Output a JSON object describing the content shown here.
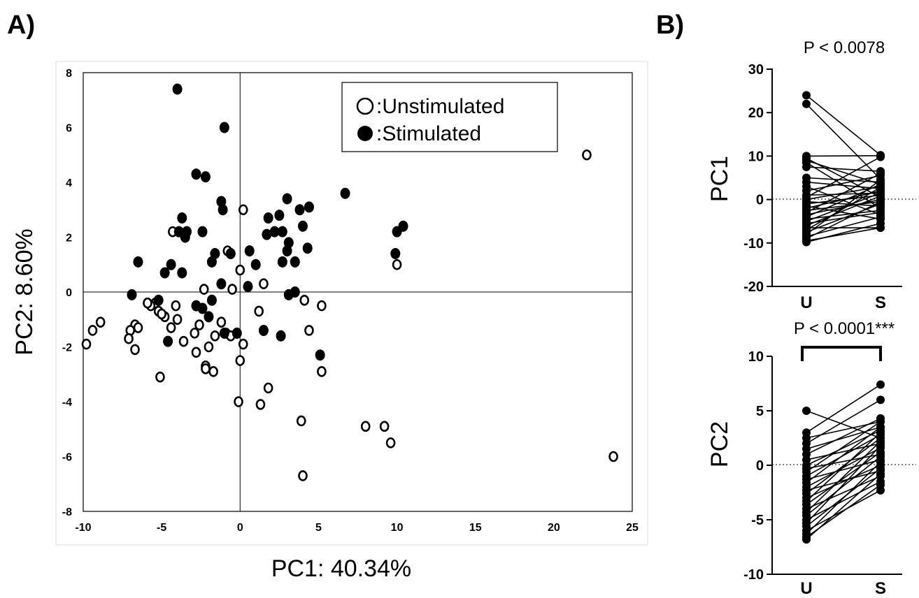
{
  "panels": {
    "a_label": "A)",
    "b_label": "B)"
  },
  "colors": {
    "ink": "#000000",
    "paper": "#ffffff",
    "frame": "#dddddd"
  },
  "chart_data": [
    {
      "id": "pca",
      "type": "scatter",
      "xlabel": "PC1: 40.34%",
      "ylabel": "PC2: 8.60%",
      "xlim": [
        -10,
        25
      ],
      "ylim": [
        -8,
        8
      ],
      "xticks": [
        "-10",
        "-5",
        "0",
        "5",
        "10",
        "15",
        "20",
        "25"
      ],
      "yticks": [
        "8",
        "6",
        "4",
        "2",
        "0",
        "-2",
        "-4",
        "-6",
        "-8"
      ],
      "legend": {
        "position": "top-right",
        "entries": [
          {
            "symbol": "○",
            "label": ":Unstimulated"
          },
          {
            "symbol": "●",
            "label": ":Stimulated"
          }
        ]
      },
      "series": [
        {
          "name": ":Unstimulated",
          "marker": "open-circle",
          "points": [
            [
              22.1,
              5.0
            ],
            [
              23.8,
              -6.0
            ],
            [
              10.0,
              1.0
            ],
            [
              0.2,
              3.0
            ],
            [
              -0.8,
              1.5
            ],
            [
              0.0,
              0.8
            ],
            [
              1.5,
              0.3
            ],
            [
              -0.5,
              0.1
            ],
            [
              -2.3,
              0.1
            ],
            [
              -4.3,
              2.2
            ],
            [
              -4.1,
              -0.5
            ],
            [
              -3.6,
              -1.8
            ],
            [
              -4.0,
              -1.0
            ],
            [
              -4.4,
              -1.3
            ],
            [
              -5.4,
              -0.4
            ],
            [
              -5.2,
              -0.7
            ],
            [
              -5.7,
              -0.5
            ],
            [
              -5.9,
              -0.4
            ],
            [
              -4.8,
              -0.9
            ],
            [
              -5.0,
              -0.8
            ],
            [
              -6.7,
              -1.2
            ],
            [
              -6.5,
              -1.3
            ],
            [
              -7.0,
              -1.4
            ],
            [
              -7.1,
              -1.7
            ],
            [
              -6.7,
              -2.1
            ],
            [
              -8.9,
              -1.1
            ],
            [
              -9.4,
              -1.4
            ],
            [
              -9.8,
              -1.9
            ],
            [
              -5.1,
              -3.1
            ],
            [
              -2.6,
              -1.2
            ],
            [
              -2.9,
              -1.5
            ],
            [
              -2.0,
              -2.0
            ],
            [
              -1.6,
              -1.6
            ],
            [
              -1.2,
              -1.1
            ],
            [
              -0.9,
              -1.5
            ],
            [
              -0.6,
              -1.6
            ],
            [
              -2.8,
              -2.2
            ],
            [
              -2.2,
              -2.7
            ],
            [
              -2.2,
              -2.8
            ],
            [
              -1.7,
              -2.9
            ],
            [
              0.2,
              -1.9
            ],
            [
              0.0,
              -2.5
            ],
            [
              1.2,
              -0.7
            ],
            [
              4.1,
              -0.3
            ],
            [
              5.2,
              -0.5
            ],
            [
              4.4,
              -1.4
            ],
            [
              5.2,
              -2.9
            ],
            [
              -0.1,
              -4.0
            ],
            [
              1.8,
              -3.5
            ],
            [
              1.3,
              -4.1
            ],
            [
              3.9,
              -4.7
            ],
            [
              4.0,
              -6.7
            ],
            [
              8.0,
              -4.9
            ],
            [
              9.2,
              -4.9
            ],
            [
              9.6,
              -5.5
            ]
          ]
        },
        {
          "name": ":Stimulated",
          "marker": "filled-circle",
          "points": [
            [
              -4.0,
              7.4
            ],
            [
              -1.0,
              6.0
            ],
            [
              -2.8,
              4.3
            ],
            [
              -2.2,
              4.2
            ],
            [
              -1.2,
              3.3
            ],
            [
              -1.1,
              3.0
            ],
            [
              6.7,
              3.6
            ],
            [
              3.0,
              3.4
            ],
            [
              4.4,
              3.1
            ],
            [
              3.8,
              3.0
            ],
            [
              2.5,
              2.8
            ],
            [
              1.8,
              2.7
            ],
            [
              10.4,
              2.4
            ],
            [
              10.0,
              2.2
            ],
            [
              9.9,
              1.4
            ],
            [
              -3.7,
              2.7
            ],
            [
              -3.4,
              2.2
            ],
            [
              -3.9,
              2.2
            ],
            [
              -3.5,
              2.0
            ],
            [
              -2.4,
              2.2
            ],
            [
              1.7,
              2.1
            ],
            [
              2.2,
              2.2
            ],
            [
              2.7,
              2.2
            ],
            [
              3.1,
              1.8
            ],
            [
              4.0,
              2.4
            ],
            [
              4.3,
              1.6
            ],
            [
              3.0,
              1.5
            ],
            [
              3.5,
              1.1
            ],
            [
              2.7,
              1.1
            ],
            [
              0.6,
              1.5
            ],
            [
              -0.6,
              1.4
            ],
            [
              -1.6,
              1.4
            ],
            [
              -1.8,
              1.1
            ],
            [
              1.0,
              1.0
            ],
            [
              -4.4,
              1.0
            ],
            [
              -3.7,
              0.7
            ],
            [
              -4.8,
              0.7
            ],
            [
              -6.5,
              1.1
            ],
            [
              -1.2,
              0.3
            ],
            [
              0.5,
              0.2
            ],
            [
              3.1,
              -0.1
            ],
            [
              3.5,
              0.0
            ],
            [
              -6.9,
              -0.1
            ],
            [
              -2.8,
              -0.5
            ],
            [
              -2.4,
              -0.6
            ],
            [
              -1.8,
              -0.3
            ],
            [
              -5.2,
              -0.3
            ],
            [
              -2.0,
              -0.9
            ],
            [
              -1.0,
              -1.5
            ],
            [
              -0.2,
              -1.5
            ],
            [
              1.5,
              -1.4
            ],
            [
              -4.6,
              -1.8
            ],
            [
              2.6,
              -1.6
            ],
            [
              5.1,
              -2.3
            ]
          ]
        }
      ]
    },
    {
      "id": "pc1_paired",
      "type": "line",
      "ylabel": "PC1",
      "annotation": "P < 0.0078",
      "categories": [
        "U",
        "S"
      ],
      "ylim": [
        -20,
        30
      ],
      "yticks": [
        "30",
        "20",
        "10",
        "0",
        "-10",
        "-20"
      ],
      "pairs": [
        [
          24.0,
          10.2
        ],
        [
          22.0,
          4.7
        ],
        [
          10.0,
          10.1
        ],
        [
          9.5,
          0.5
        ],
        [
          9.0,
          3.5
        ],
        [
          8.5,
          -2.0
        ],
        [
          7.5,
          6.5
        ],
        [
          5.0,
          4.0
        ],
        [
          4.0,
          2.5
        ],
        [
          3.0,
          -3.5
        ],
        [
          2.0,
          5.5
        ],
        [
          1.0,
          1.5
        ],
        [
          0.5,
          9.8
        ],
        [
          0.0,
          3.0
        ],
        [
          -0.5,
          -1.5
        ],
        [
          -1.0,
          1.0
        ],
        [
          -1.5,
          -4.5
        ],
        [
          -2.0,
          2.0
        ],
        [
          -2.5,
          -0.5
        ],
        [
          -3.0,
          6.0
        ],
        [
          -3.5,
          0.0
        ],
        [
          -4.0,
          3.5
        ],
        [
          -4.5,
          -2.5
        ],
        [
          -5.0,
          1.5
        ],
        [
          -5.5,
          -3.0
        ],
        [
          -6.0,
          0.8
        ],
        [
          -6.5,
          -6.5
        ],
        [
          -7.0,
          2.8
        ],
        [
          -7.5,
          -1.0
        ],
        [
          -8.0,
          4.5
        ],
        [
          -8.5,
          -4.0
        ],
        [
          -9.0,
          -0.5
        ],
        [
          -9.5,
          -6.5
        ],
        [
          -9.8,
          -5.5
        ]
      ]
    },
    {
      "id": "pc2_paired",
      "type": "line",
      "ylabel": "PC2",
      "annotation": "P < 0.0001***",
      "categories": [
        "U",
        "S"
      ],
      "ylim": [
        -10,
        10
      ],
      "yticks": [
        "10",
        "5",
        "0",
        "-5",
        "-10"
      ],
      "pairs": [
        [
          5.0,
          2.5
        ],
        [
          3.0,
          7.4
        ],
        [
          2.5,
          4.0
        ],
        [
          2.0,
          6.0
        ],
        [
          1.5,
          3.5
        ],
        [
          1.0,
          4.3
        ],
        [
          0.5,
          2.0
        ],
        [
          0.0,
          3.2
        ],
        [
          -0.3,
          1.0
        ],
        [
          -0.6,
          4.0
        ],
        [
          -1.0,
          2.8
        ],
        [
          -1.3,
          0.5
        ],
        [
          -1.6,
          3.5
        ],
        [
          -2.0,
          1.6
        ],
        [
          -2.3,
          -0.5
        ],
        [
          -2.6,
          2.5
        ],
        [
          -3.0,
          0.0
        ],
        [
          -3.3,
          3.0
        ],
        [
          -3.6,
          1.2
        ],
        [
          -4.0,
          -1.0
        ],
        [
          -4.3,
          2.2
        ],
        [
          -4.6,
          0.8
        ],
        [
          -5.0,
          -1.5
        ],
        [
          -5.3,
          1.8
        ],
        [
          -5.6,
          -0.3
        ],
        [
          -6.0,
          -2.3
        ],
        [
          -6.3,
          0.3
        ],
        [
          -6.6,
          -1.8
        ],
        [
          -6.8,
          -0.8
        ]
      ]
    }
  ]
}
